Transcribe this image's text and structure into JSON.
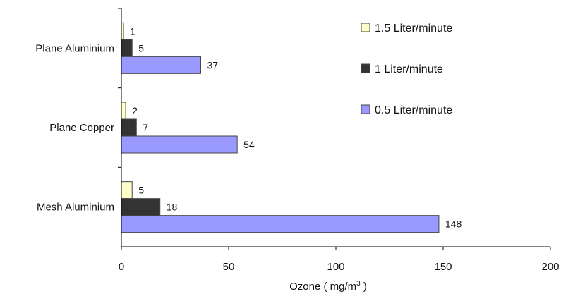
{
  "chart_data": {
    "type": "bar",
    "orientation": "horizontal",
    "categories": [
      "Plane Aluminium",
      "Plane Copper",
      "Mesh Aluminium"
    ],
    "series": [
      {
        "name": "1.5 Liter/minute",
        "values": [
          1,
          2,
          5
        ],
        "color": "#ffffcc"
      },
      {
        "name": "1 Liter/minute",
        "values": [
          5,
          7,
          18
        ],
        "color": "#333333"
      },
      {
        "name": "0.5 Liter/minute",
        "values": [
          37,
          54,
          148
        ],
        "color": "#9999ff"
      }
    ],
    "title": "",
    "xlabel": "Ozone ( mg/m",
    "xlabel_superscript": "3",
    "xlabel_suffix": " )",
    "ylabel": "",
    "xlim": [
      0,
      200
    ],
    "xticks": [
      0,
      50,
      100,
      150,
      200
    ],
    "grid": false,
    "legend": "top-right"
  }
}
